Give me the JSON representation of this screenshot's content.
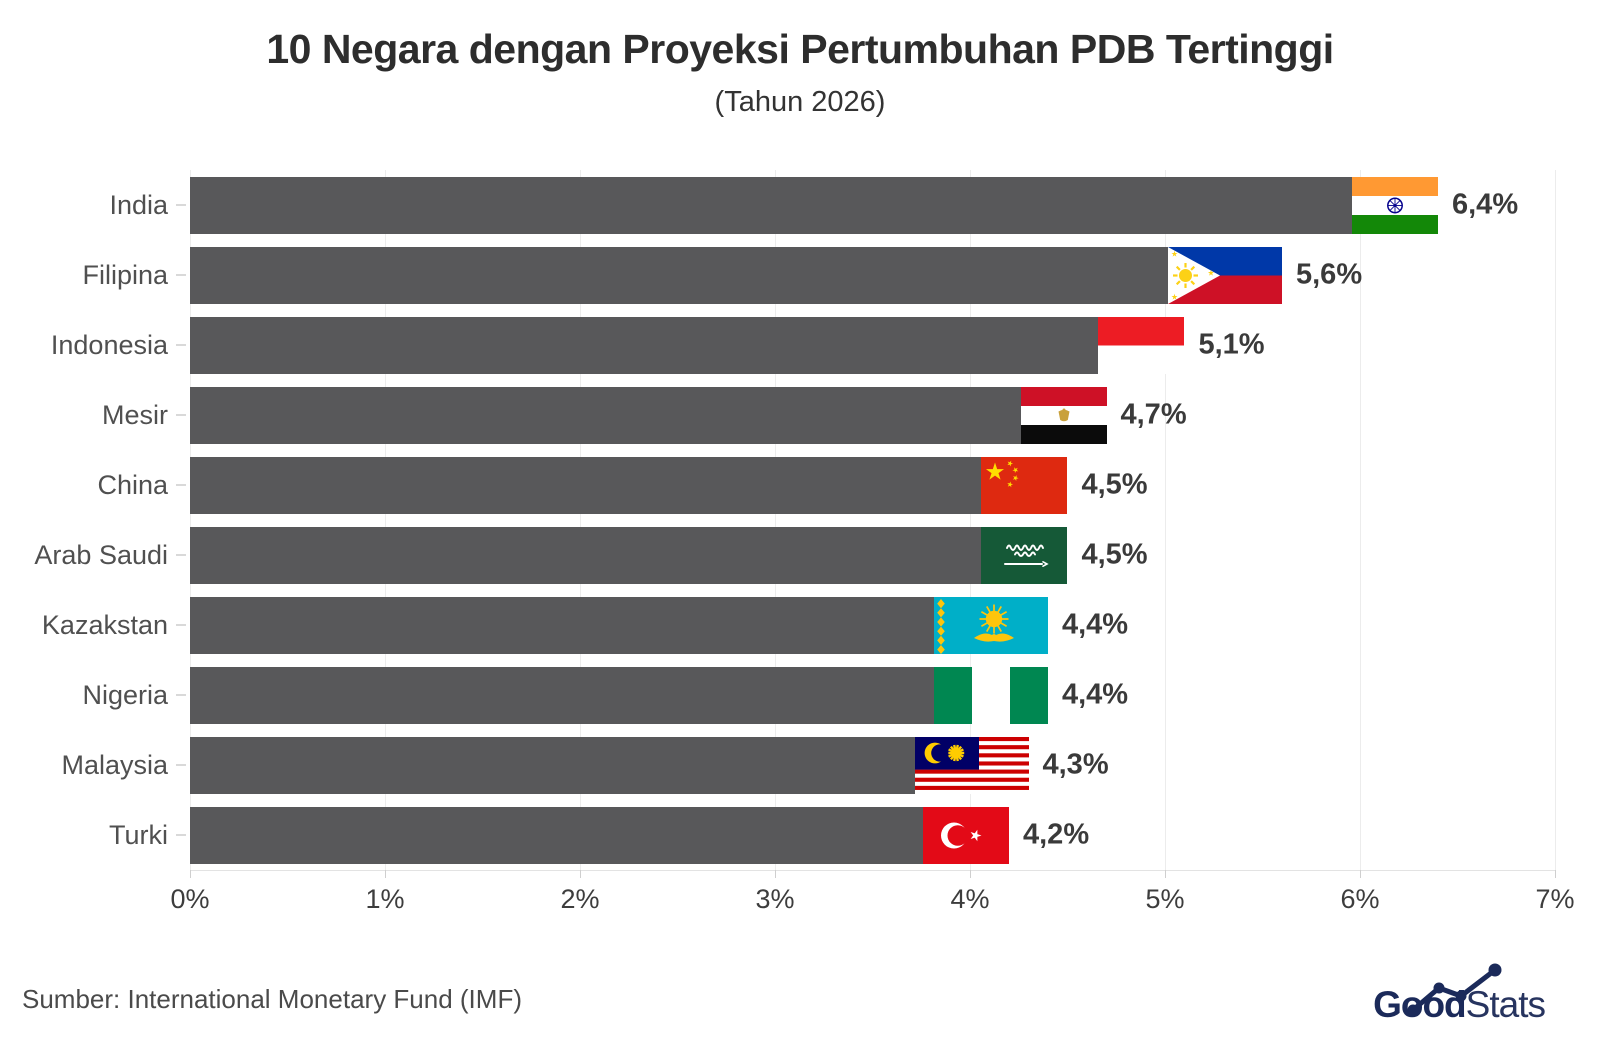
{
  "title": "10 Negara dengan Proyeksi Pertumbuhan PDB Tertinggi",
  "subtitle": "(Tahun 2026)",
  "source": "Sumber: International Monetary Fund (IMF)",
  "logo": {
    "bold": "Good",
    "light": "Stats"
  },
  "colors": {
    "bar": "#58585a",
    "value_text": "#3a3a3a",
    "label_text": "#505050",
    "logo_navy": "#1b2a5a"
  },
  "axis": {
    "tick_labels": [
      "0%",
      "1%",
      "2%",
      "3%",
      "4%",
      "5%",
      "6%",
      "7%"
    ]
  },
  "chart_data": {
    "type": "bar",
    "orientation": "horizontal",
    "title": "10 Negara dengan Proyeksi Pertumbuhan PDB Tertinggi",
    "subtitle": "(Tahun 2026)",
    "categories": [
      "India",
      "Filipina",
      "Indonesia",
      "Mesir",
      "China",
      "Arab Saudi",
      "Kazakstan",
      "Nigeria",
      "Malaysia",
      "Turki"
    ],
    "values": [
      6.4,
      5.6,
      5.1,
      4.7,
      4.5,
      4.5,
      4.4,
      4.4,
      4.3,
      4.2
    ],
    "value_labels": [
      "6,4%",
      "5,6%",
      "5,1%",
      "4,7%",
      "4,5%",
      "4,5%",
      "4,4%",
      "4,4%",
      "4,3%",
      "4,2%"
    ],
    "flags": [
      "india",
      "filipina",
      "indonesia",
      "mesir",
      "china",
      "arab-saudi",
      "kazakstan",
      "nigeria",
      "malaysia",
      "turki"
    ],
    "xlabel": "",
    "ylabel": "",
    "xlim": [
      0,
      7
    ],
    "x_tick_labels": [
      "0%",
      "1%",
      "2%",
      "3%",
      "4%",
      "5%",
      "6%",
      "7%"
    ],
    "grid": true,
    "legend": "none",
    "bar_color": "#58585a",
    "source": "Sumber: International Monetary Fund (IMF)"
  }
}
